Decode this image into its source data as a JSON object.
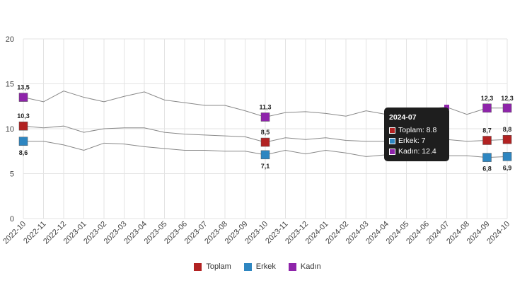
{
  "chart_data": {
    "type": "line",
    "categories": [
      "2022-10",
      "2022-11",
      "2022-12",
      "2023-01",
      "2023-02",
      "2023-03",
      "2023-04",
      "2023-05",
      "2023-06",
      "2023-07",
      "2023-08",
      "2023-09",
      "2023-10",
      "2023-11",
      "2023-12",
      "2024-01",
      "2024-02",
      "2024-03",
      "2024-04",
      "2024-05",
      "2024-06",
      "2024-07",
      "2024-08",
      "2024-09",
      "2024-10"
    ],
    "ylim": [
      0,
      20
    ],
    "yticks": [
      0,
      5,
      10,
      15,
      20
    ],
    "grid": true,
    "legend_position": "bottom",
    "series": [
      {
        "name": "Toplam",
        "color": "#b22222",
        "values": [
          10.3,
          10.1,
          10.3,
          9.6,
          10.0,
          10.1,
          10.1,
          9.6,
          9.4,
          9.3,
          9.2,
          9.1,
          8.5,
          9.0,
          8.8,
          9.0,
          8.7,
          8.6,
          8.6,
          8.7,
          8.8,
          8.8,
          8.6,
          8.7,
          8.8
        ],
        "labels": {
          "0": "10,3",
          "12": "8,5",
          "23": "8,7",
          "24": "8,8"
        }
      },
      {
        "name": "Erkek",
        "color": "#2e86c1",
        "values": [
          8.6,
          8.6,
          8.2,
          7.6,
          8.4,
          8.3,
          8.0,
          7.8,
          7.6,
          7.6,
          7.5,
          7.5,
          7.1,
          7.6,
          7.2,
          7.6,
          7.3,
          6.9,
          7.1,
          7.0,
          7.0,
          7.0,
          7.0,
          6.8,
          6.9
        ],
        "labels": {
          "0": "8,6",
          "12": "7,1",
          "23": "6,8",
          "24": "6,9"
        }
      },
      {
        "name": "Kadın",
        "color": "#8e24aa",
        "values": [
          13.5,
          13.0,
          14.2,
          13.5,
          13.0,
          13.6,
          14.1,
          13.2,
          12.9,
          12.6,
          12.6,
          12.0,
          11.3,
          11.8,
          11.9,
          11.7,
          11.4,
          12.0,
          11.6,
          12.1,
          12.2,
          12.4,
          11.6,
          12.3,
          12.3
        ],
        "labels": {
          "0": "13,5",
          "12": "11,3",
          "23": "12,3",
          "24": "12,3"
        }
      }
    ],
    "tooltip": {
      "title": "2024-07",
      "rows": [
        "Toplam: 8.8",
        "Erkek: 7",
        "Kadın: 12.4"
      ]
    }
  }
}
